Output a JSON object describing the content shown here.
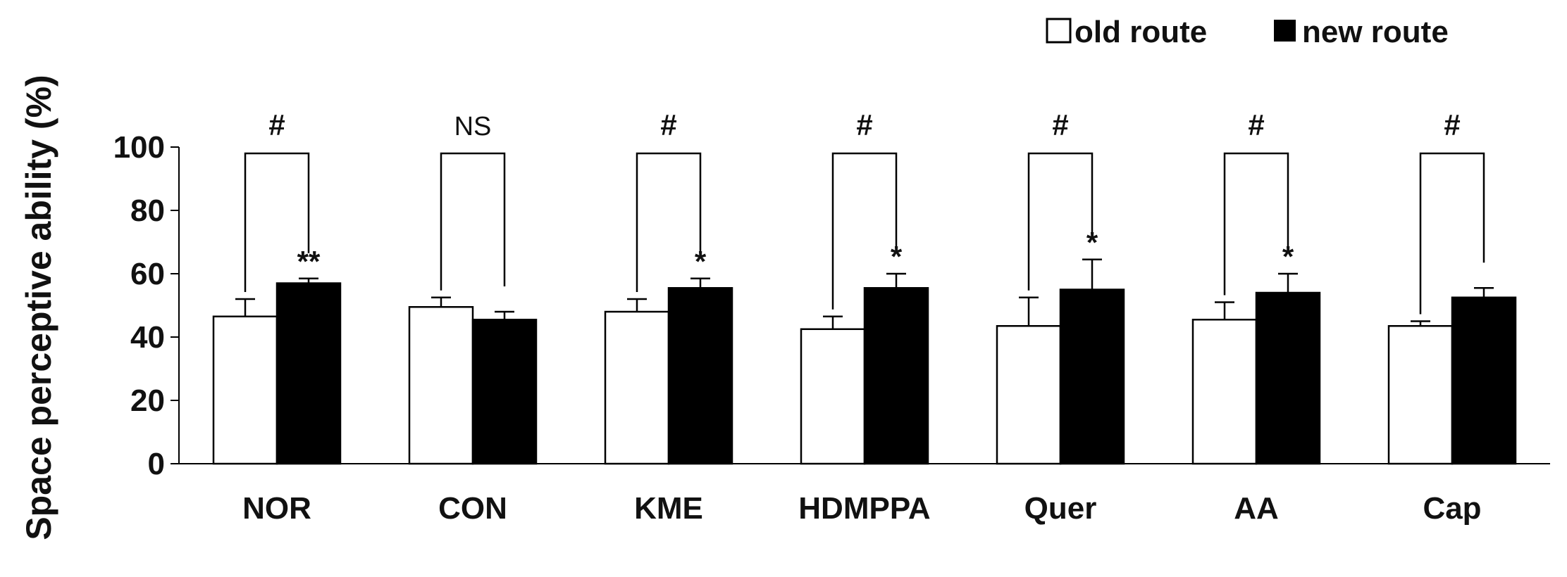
{
  "chart_data": {
    "type": "bar",
    "categories": [
      "NOR",
      "CON",
      "KME",
      "HDMPPA",
      "Quer",
      "AA",
      "Cap"
    ],
    "series": [
      {
        "name": "old route",
        "color": "#ffffff",
        "values": [
          46.5,
          49.5,
          48,
          42.5,
          43.5,
          45.5,
          43.5
        ],
        "errors": [
          5.5,
          3,
          4,
          4,
          9,
          5.5,
          1.5
        ]
      },
      {
        "name": "new route",
        "color": "#000000",
        "values": [
          57,
          45.5,
          55.5,
          55.5,
          55,
          54,
          52.5
        ],
        "errors": [
          1.5,
          2.5,
          3,
          4.5,
          9.5,
          6,
          3
        ]
      }
    ],
    "ylabel": "Space perceptive ability (%)",
    "xlabel": "",
    "ylim": [
      0,
      100
    ],
    "yticks": [
      0,
      20,
      40,
      60,
      80,
      100
    ],
    "grid": false,
    "legend": {
      "position": "top-right",
      "entries": [
        "old route",
        "new route"
      ]
    },
    "comparison_labels": [
      "#",
      "NS",
      "#",
      "#",
      "#",
      "#",
      "#"
    ],
    "new_route_marks": [
      "**",
      "",
      "*",
      "*",
      "*",
      "*",
      ""
    ]
  }
}
